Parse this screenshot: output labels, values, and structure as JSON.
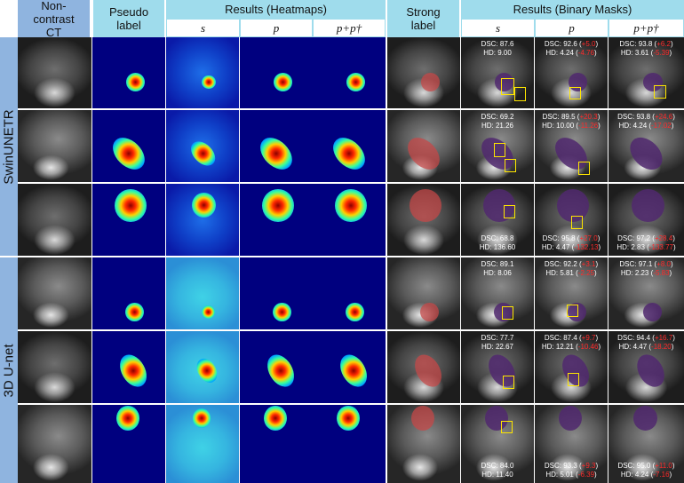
{
  "headers": {
    "noncontrast_ct": "Non-contrast CT",
    "pseudo_label": "Pseudo label",
    "results_heatmaps": "Results (Heatmaps)",
    "strong_label": "Strong label",
    "results_binary_masks": "Results (Binary Masks)",
    "sub_s": "s",
    "sub_p": "p",
    "sub_ppd": "p+p†"
  },
  "row_labels": [
    "SwinUNETR",
    "3D U-net"
  ],
  "metrics": [
    {
      "s": {
        "dsc": "DSC: 87.6",
        "hd": "HD: 9.00"
      },
      "p": {
        "dsc": "DSC: 92.6",
        "dsc_delta": "+5.0",
        "hd": "HD: 4.24",
        "hd_delta": "-4.76"
      },
      "ppd": {
        "dsc": "DSC: 93.8",
        "dsc_delta": "+6.2",
        "hd": "HD: 3.61",
        "hd_delta": "-5.39"
      }
    },
    {
      "s": {
        "dsc": "DSC: 69.2",
        "hd": "HD: 21.26"
      },
      "p": {
        "dsc": "DSC: 89.5",
        "dsc_delta": "+20.3",
        "hd": "HD: 10.00",
        "hd_delta": "-11.26"
      },
      "ppd": {
        "dsc": "DSC: 93.8",
        "dsc_delta": "+24.6",
        "hd": "HD: 4.24",
        "hd_delta": "-17.02"
      }
    },
    {
      "s": {
        "dsc": "DSC: 68.8",
        "hd": "HD: 136.60"
      },
      "p": {
        "dsc": "DSC: 95.8",
        "dsc_delta": "+27.0",
        "hd": "HD: 4.47",
        "hd_delta": "-132.13"
      },
      "ppd": {
        "dsc": "DSC: 97.2",
        "dsc_delta": "+28.4",
        "hd": "HD: 2.83",
        "hd_delta": "-133.77"
      }
    },
    {
      "s": {
        "dsc": "DSC: 89.1",
        "hd": "HD: 8.06"
      },
      "p": {
        "dsc": "DSC: 92.2",
        "dsc_delta": "+3.1",
        "hd": "HD: 5.81",
        "hd_delta": "-2.25"
      },
      "ppd": {
        "dsc": "DSC: 97.1",
        "dsc_delta": "+8.0",
        "hd": "HD: 2.23",
        "hd_delta": "-5.83"
      }
    },
    {
      "s": {
        "dsc": "DSC: 77.7",
        "hd": "HD: 22.67"
      },
      "p": {
        "dsc": "DSC: 87.4",
        "dsc_delta": "+9.7",
        "hd": "HD: 12.21",
        "hd_delta": "-10.46"
      },
      "ppd": {
        "dsc": "DSC: 94.4",
        "dsc_delta": "+16.7",
        "hd": "HD: 4.47",
        "hd_delta": "-18.20"
      }
    },
    {
      "s": {
        "dsc": "DSC: 84.0",
        "hd": "HD: 11.40"
      },
      "p": {
        "dsc": "DSC: 93.3",
        "dsc_delta": "+9.3",
        "hd": "HD: 5.01",
        "hd_delta": "-6.39"
      },
      "ppd": {
        "dsc": "DSC: 95.0",
        "dsc_delta": "+11.0",
        "hd": "HD: 4.24",
        "hd_delta": "-7.16"
      }
    }
  ],
  "colors": {
    "header_blue": "#8fb4df",
    "header_cyan": "#9fdcec",
    "delta_red": "#ff2a2a",
    "box_yellow": "#ffe600"
  }
}
